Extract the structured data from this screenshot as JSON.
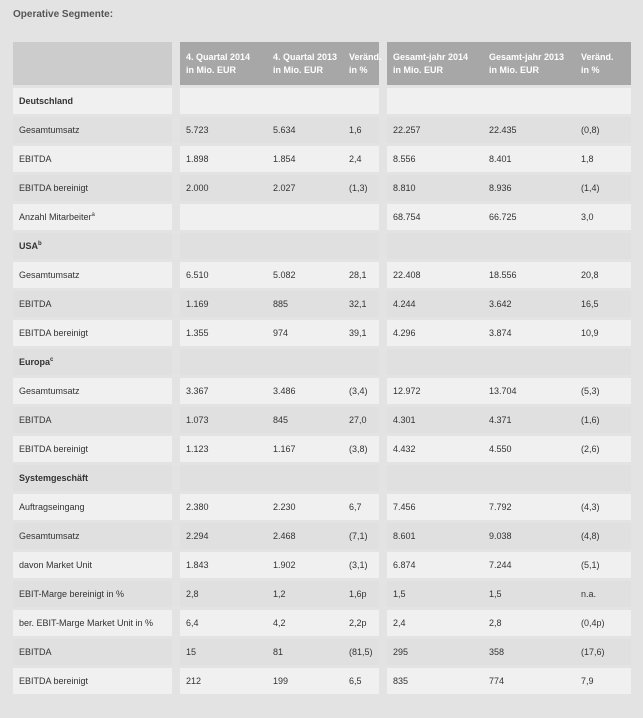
{
  "heading": "Operative Segmente:",
  "columns": [
    {
      "l1": "",
      "l2": ""
    },
    {
      "l1": "4. Quartal 2014",
      "l2": "in Mio. EUR"
    },
    {
      "l1": "4. Quartal 2013",
      "l2": "in Mio. EUR"
    },
    {
      "l1": "Veränd.",
      "l2": "in %"
    },
    {
      "l1": "Gesamt-jahr 2014",
      "l2": "in Mio. EUR"
    },
    {
      "l1": "Gesamt-jahr 2013",
      "l2": "in Mio. EUR"
    },
    {
      "l1": "Veränd.",
      "l2": "in %"
    }
  ],
  "rows": [
    {
      "type": "section",
      "label": "Deutschland",
      "sup": "",
      "cells": [
        "",
        "",
        "",
        "",
        "",
        ""
      ]
    },
    {
      "type": "data",
      "label": "Gesamtumsatz",
      "sup": "",
      "cells": [
        "5.723",
        "5.634",
        "1,6",
        "22.257",
        "22.435",
        "(0,8)"
      ]
    },
    {
      "type": "data",
      "label": "EBITDA",
      "sup": "",
      "cells": [
        "1.898",
        "1.854",
        "2,4",
        "8.556",
        "8.401",
        "1,8"
      ]
    },
    {
      "type": "data",
      "label": "EBITDA bereinigt",
      "sup": "",
      "cells": [
        "2.000",
        "2.027",
        "(1,3)",
        "8.810",
        "8.936",
        "(1,4)"
      ]
    },
    {
      "type": "data",
      "label": "Anzahl Mitarbeiter",
      "sup": "a",
      "cells": [
        "",
        "",
        "",
        "68.754",
        "66.725",
        "3,0"
      ]
    },
    {
      "type": "section",
      "label": "USA",
      "sup": "b",
      "cells": [
        "",
        "",
        "",
        "",
        "",
        ""
      ]
    },
    {
      "type": "data",
      "label": "Gesamtumsatz",
      "sup": "",
      "cells": [
        "6.510",
        "5.082",
        "28,1",
        "22.408",
        "18.556",
        "20,8"
      ]
    },
    {
      "type": "data",
      "label": "EBITDA",
      "sup": "",
      "cells": [
        "1.169",
        "885",
        "32,1",
        "4.244",
        "3.642",
        "16,5"
      ]
    },
    {
      "type": "data",
      "label": "EBITDA bereinigt",
      "sup": "",
      "cells": [
        "1.355",
        "974",
        "39,1",
        "4.296",
        "3.874",
        "10,9"
      ]
    },
    {
      "type": "section",
      "label": "Europa",
      "sup": "c",
      "cells": [
        "",
        "",
        "",
        "",
        "",
        ""
      ]
    },
    {
      "type": "data",
      "label": "Gesamtumsatz",
      "sup": "",
      "cells": [
        "3.367",
        "3.486",
        "(3,4)",
        "12.972",
        "13.704",
        "(5,3)"
      ]
    },
    {
      "type": "data",
      "label": "EBITDA",
      "sup": "",
      "cells": [
        "1.073",
        "845",
        "27,0",
        "4.301",
        "4.371",
        "(1,6)"
      ]
    },
    {
      "type": "data",
      "label": "EBITDA bereinigt",
      "sup": "",
      "cells": [
        "1.123",
        "1.167",
        "(3,8)",
        "4.432",
        "4.550",
        "(2,6)"
      ]
    },
    {
      "type": "section",
      "label": "Systemgeschäft",
      "sup": "",
      "cells": [
        "",
        "",
        "",
        "",
        "",
        ""
      ]
    },
    {
      "type": "data",
      "label": "Auftragseingang",
      "sup": "",
      "cells": [
        "2.380",
        "2.230",
        "6,7",
        "7.456",
        "7.792",
        "(4,3)"
      ]
    },
    {
      "type": "data",
      "label": "Gesamtumsatz",
      "sup": "",
      "cells": [
        "2.294",
        "2.468",
        "(7,1)",
        "8.601",
        "9.038",
        "(4,8)"
      ]
    },
    {
      "type": "data",
      "label": "davon Market Unit",
      "sup": "",
      "cells": [
        "1.843",
        "1.902",
        "(3,1)",
        "6.874",
        "7.244",
        "(5,1)"
      ]
    },
    {
      "type": "data",
      "label": "EBIT-Marge bereinigt in %",
      "sup": "",
      "cells": [
        "2,8",
        "1,2",
        "1,6p",
        "1,5",
        "1,5",
        "n.a."
      ]
    },
    {
      "type": "data",
      "label": "ber. EBIT-Marge Market Unit in %",
      "sup": "",
      "cells": [
        "6,4",
        "4,2",
        "2,2p",
        "2,4",
        "2,8",
        "(0,4p)"
      ]
    },
    {
      "type": "data",
      "label": "EBITDA",
      "sup": "",
      "cells": [
        "15",
        "81",
        "(81,5)",
        "295",
        "358",
        "(17,6)"
      ]
    },
    {
      "type": "data",
      "label": "EBITDA bereinigt",
      "sup": "",
      "cells": [
        "212",
        "199",
        "6,5",
        "835",
        "774",
        "7,9"
      ]
    }
  ]
}
